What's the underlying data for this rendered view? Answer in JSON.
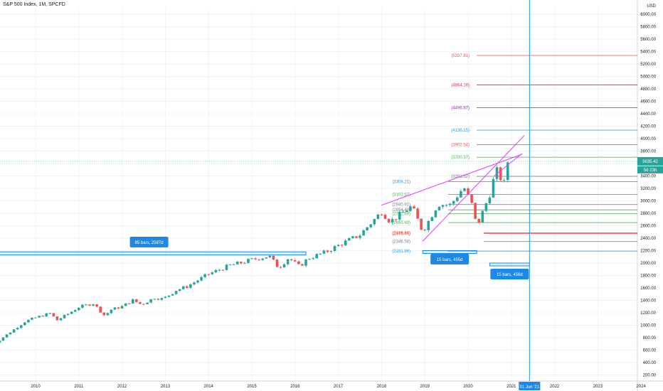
{
  "header": {
    "title": "S&P 500 Index, 1M, SPCFD",
    "currency": "USD",
    "top_price_label": "6000.00"
  },
  "colors": {
    "up": "#26a69a",
    "down": "#ef5350",
    "grid": "#f0f3fa",
    "axis_text": "#131722",
    "trend": "#e040fb",
    "vline": "#2196f3",
    "price_badge": "#26a69a",
    "box": "#1e88e5"
  },
  "chart_data": {
    "type": "candlestick",
    "interval": "1M",
    "x_ticks": [
      "2010",
      "2011",
      "2012",
      "2013",
      "2014",
      "2015",
      "2016",
      "2017",
      "2018",
      "2019",
      "2020",
      "2021",
      "2022",
      "2023",
      "2024"
    ],
    "y_ticks": [
      6000,
      5800,
      5600,
      5400,
      5200,
      5000,
      4800,
      4600,
      4400,
      4200,
      4000,
      3800,
      3600,
      3400,
      3200,
      3000,
      2800,
      2600,
      2400,
      2200,
      2000,
      1800,
      1600,
      1400,
      1200,
      1000,
      800,
      600,
      400,
      200
    ],
    "ylim": [
      100,
      6200
    ],
    "last_price": "3635.42",
    "countdown": "5d 23h",
    "cursor_date": "01 Jun '21",
    "monthly_close_anchors": [
      [
        2009.75,
        1060
      ],
      [
        2010.0,
        1120
      ],
      [
        2010.33,
        1190
      ],
      [
        2010.5,
        1080
      ],
      [
        2010.75,
        1180
      ],
      [
        2011.0,
        1290
      ],
      [
        2011.33,
        1350
      ],
      [
        2011.6,
        1150
      ],
      [
        2011.75,
        1250
      ],
      [
        2012.0,
        1300
      ],
      [
        2012.25,
        1400
      ],
      [
        2012.45,
        1330
      ],
      [
        2012.75,
        1440
      ],
      [
        2012.95,
        1420
      ],
      [
        2013.25,
        1560
      ],
      [
        2013.5,
        1620
      ],
      [
        2013.75,
        1720
      ],
      [
        2014.0,
        1820
      ],
      [
        2014.5,
        1960
      ],
      [
        2014.75,
        2000
      ],
      [
        2015.0,
        2050
      ],
      [
        2015.4,
        2110
      ],
      [
        2015.62,
        1920
      ],
      [
        2015.85,
        2080
      ],
      [
        2016.1,
        1940
      ],
      [
        2016.3,
        2070
      ],
      [
        2016.7,
        2170
      ],
      [
        2017.0,
        2280
      ],
      [
        2017.5,
        2450
      ],
      [
        2018.0,
        2820
      ],
      [
        2018.2,
        2660
      ],
      [
        2018.7,
        2910
      ],
      [
        2018.95,
        2500
      ],
      [
        2019.3,
        2940
      ],
      [
        2019.6,
        2930
      ],
      [
        2019.9,
        3220
      ],
      [
        2020.08,
        2950
      ],
      [
        2020.2,
        2580
      ],
      [
        2020.5,
        3100
      ],
      [
        2020.65,
        3500
      ],
      [
        2020.75,
        3360
      ],
      [
        2020.83,
        3270
      ],
      [
        2020.92,
        3635
      ]
    ],
    "levels": [
      {
        "label": "(5337.81)",
        "value": 5337.81,
        "color": "#ef5350"
      },
      {
        "label": "(4864.16)",
        "value": 4864.16,
        "color": "#e91e63"
      },
      {
        "label": "(4496.87)",
        "value": 4496.87,
        "color": "#9c27b0"
      },
      {
        "label": "(4136.15)",
        "value": 4136.15,
        "color": "#2196f3"
      },
      {
        "label": "(3902.54)",
        "value": 3902.54,
        "color": "#ef5350"
      },
      {
        "label": "(3700.37)",
        "value": 3700.37,
        "color": "#4caf50"
      },
      {
        "label": "(3393.52)",
        "value": 3393.52,
        "color": "#787b86"
      },
      {
        "label": "(3308.21)",
        "value": 3308.21,
        "color": "#2196f3"
      },
      {
        "label": "(3102.57)",
        "value": 3102.57,
        "color": "#4caf50"
      },
      {
        "label": "(2940.91)",
        "value": 2940.91,
        "color": "#787b86"
      },
      {
        "label": "(2854.49)",
        "value": 2854.49,
        "color": "#787b86"
      },
      {
        "label": "(2792.69)",
        "value": 2792.69,
        "color": "#4caf50"
      },
      {
        "label": "(2650.69)",
        "value": 2650.69,
        "color": "#4caf50"
      },
      {
        "label": "(2486.84)",
        "value": 2486.84,
        "color": "#ef5350"
      },
      {
        "label": "(2475.45)",
        "value": 2475.45,
        "color": "#ef5350"
      },
      {
        "label": "(2346.58)",
        "value": 2346.58,
        "color": "#787b86"
      },
      {
        "label": "(2191.86)",
        "value": 2191.86,
        "color": "#2196f3"
      }
    ],
    "range_boxes": [
      {
        "label": "85 bars, 2587d",
        "from": 2009.0,
        "to": 2016.25,
        "price_top": 2180,
        "price_bottom": 2130
      },
      {
        "label": "15 bars, 455d",
        "from": 2018.95,
        "to": 2020.2,
        "price_top": 2200,
        "price_bottom": 2160
      },
      {
        "label": "15 bars, 456d",
        "from": 2020.5,
        "to": 2021.42,
        "price_top": 2000,
        "price_bottom": 1960
      }
    ],
    "trend_lines": [
      {
        "from": [
          2018.0,
          2930
        ],
        "to": [
          2021.25,
          3750
        ]
      },
      {
        "from": [
          2018.95,
          2350
        ],
        "to": [
          2021.3,
          4050
        ]
      },
      {
        "from": [
          2020.6,
          3400
        ],
        "to": [
          2021.25,
          3760
        ]
      }
    ],
    "cursor_x": 2021.42,
    "last_price_level": 3635.42
  }
}
